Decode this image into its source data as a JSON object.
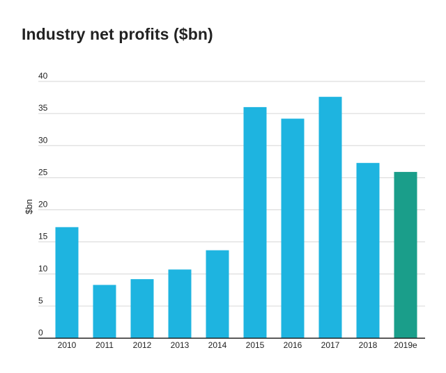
{
  "title": "Industry net profits ($bn)",
  "chart_data": {
    "type": "bar",
    "title": "Industry net profits ($bn)",
    "xlabel": "",
    "ylabel": "$bn",
    "ylim": [
      0,
      40
    ],
    "yticks": [
      0,
      5,
      10,
      15,
      20,
      25,
      30,
      35,
      40
    ],
    "grid": true,
    "categories": [
      "2010",
      "2011",
      "2012",
      "2013",
      "2014",
      "2015",
      "2016",
      "2017",
      "2018",
      "2019e"
    ],
    "values": [
      17.3,
      8.3,
      9.2,
      10.7,
      13.7,
      36.0,
      34.2,
      37.6,
      27.3,
      25.9
    ],
    "colors": [
      "#1eb4e0",
      "#1eb4e0",
      "#1eb4e0",
      "#1eb4e0",
      "#1eb4e0",
      "#1eb4e0",
      "#1eb4e0",
      "#1eb4e0",
      "#1eb4e0",
      "#1a9e8a"
    ]
  }
}
